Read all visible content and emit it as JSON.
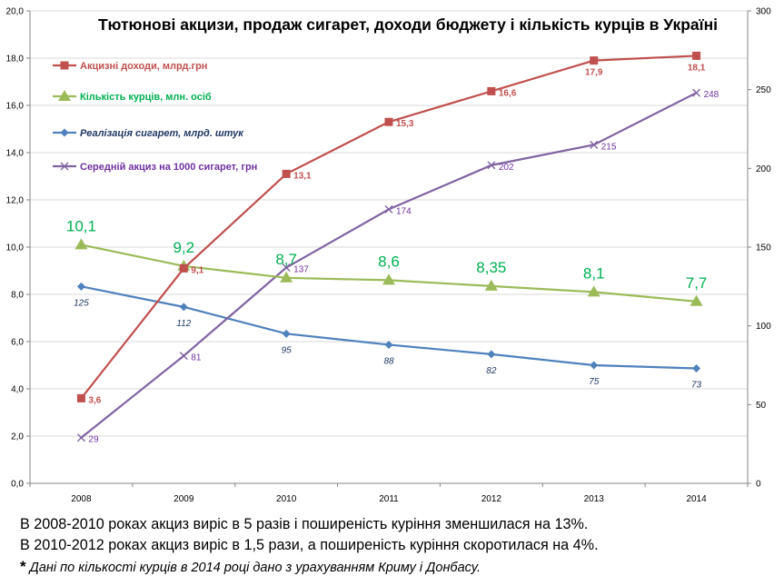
{
  "chart_data": {
    "type": "line",
    "title": "Тютюнові акцизи, продаж сигарет, доходи бюджету і кількість курців в Україні",
    "categories": [
      "2008",
      "2009",
      "2010",
      "2011",
      "2012",
      "2013",
      "2014"
    ],
    "y_left": {
      "range": [
        0,
        20
      ],
      "ticks": [
        "0,0",
        "2,0",
        "4,0",
        "6,0",
        "8,0",
        "10,0",
        "12,0",
        "14,0",
        "16,0",
        "18,0",
        "20,0"
      ]
    },
    "y_right": {
      "range": [
        0,
        300
      ],
      "ticks": [
        "0",
        "50",
        "100",
        "150",
        "200",
        "250",
        "300"
      ]
    },
    "grid": true,
    "legend_position": "top-left",
    "series": [
      {
        "name": "Акцизні доходи, млрд.грн",
        "axis": "left",
        "color": "#c0504d",
        "marker": "square",
        "values": [
          3.6,
          9.1,
          13.1,
          15.3,
          16.6,
          17.9,
          18.1
        ],
        "labels": [
          "3,6",
          "9,1",
          "13,1",
          "15,3",
          "16,6",
          "17,9",
          "18,1"
        ]
      },
      {
        "name": "Кількість курців, млн. осіб",
        "axis": "left",
        "color": "#9bbb59",
        "marker": "triangle",
        "label_color": "#00b050",
        "values": [
          10.1,
          9.2,
          8.7,
          8.6,
          8.35,
          8.1,
          7.7
        ],
        "labels": [
          "10,1",
          "9,2",
          "8,7",
          "8,6",
          "8,35",
          "8,1",
          "7,7"
        ]
      },
      {
        "name": "Реалізація сигарет, млрд. штук",
        "axis": "right",
        "color": "#4f81bd",
        "marker": "diamond",
        "label_color": "#1f3864",
        "values": [
          125,
          112,
          95,
          88,
          82,
          75,
          73
        ],
        "labels": [
          "125",
          "112",
          "95",
          "88",
          "82",
          "75",
          "73"
        ]
      },
      {
        "name": "Середній акциз на 1000 сигарет, грн",
        "axis": "right",
        "color": "#8064a2",
        "marker": "x",
        "label_color": "#7030a0",
        "values": [
          29,
          81,
          137,
          174,
          202,
          215,
          248
        ],
        "labels": [
          "29",
          "81",
          "137",
          "174",
          "202",
          "215",
          "248"
        ]
      }
    ]
  },
  "notes": {
    "line1": "В 2008-2010 роках  акциз виріс в  5 разів і поширеність куріння зменшилася на 13%.",
    "line2": "В 2010-2012 роках  акциз виріс  в 1,5 рази, а поширеність куріння скоротилася на 4%.",
    "footnote_mark": "*",
    "footnote": " Дані по кількості курців  в 2014 році дано з урахуванням Криму і Донбасу."
  }
}
